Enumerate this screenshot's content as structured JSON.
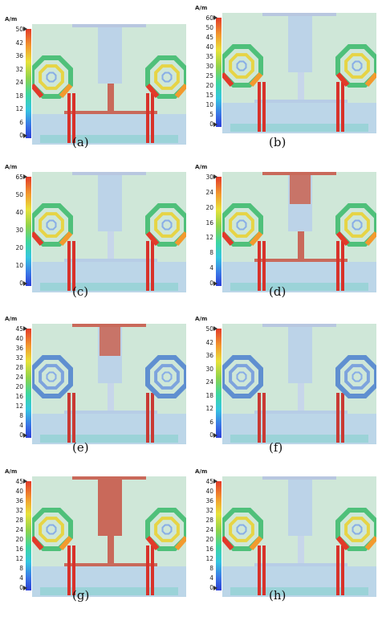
{
  "unit_label": "A/m",
  "panels": [
    {
      "label": "(a)",
      "ticks": [
        "50",
        "42",
        "36",
        "32",
        "24",
        "18",
        "12",
        "6",
        "0"
      ]
    },
    {
      "label": "(b)",
      "ticks": [
        "60",
        "50",
        "45",
        "40",
        "35",
        "30",
        "25",
        "20",
        "15",
        "10",
        "5",
        "0"
      ]
    },
    {
      "label": "(c)",
      "ticks": [
        "65",
        "50",
        "40",
        "30",
        "20",
        "10",
        "0"
      ]
    },
    {
      "label": "(d)",
      "ticks": [
        "30",
        "24",
        "20",
        "16",
        "12",
        "8",
        "4",
        "0"
      ]
    },
    {
      "label": "(e)",
      "ticks": [
        "45",
        "40",
        "36",
        "32",
        "28",
        "24",
        "20",
        "16",
        "12",
        "8",
        "4",
        "0"
      ]
    },
    {
      "label": "(f)",
      "ticks": [
        "50",
        "42",
        "36",
        "30",
        "24",
        "18",
        "12",
        "6",
        "0"
      ]
    },
    {
      "label": "(g)",
      "ticks": [
        "45",
        "40",
        "36",
        "32",
        "28",
        "24",
        "20",
        "16",
        "12",
        "8",
        "4",
        "0"
      ]
    },
    {
      "label": "(h)",
      "ticks": [
        "45",
        "40",
        "36",
        "32",
        "28",
        "24",
        "20",
        "16",
        "12",
        "8",
        "4",
        "0"
      ]
    }
  ],
  "colors": {
    "background": "#cfe7d8",
    "high": "#c9695a",
    "medium": "#f0c040",
    "low": "#3a78e6",
    "copper": "#b8c7e0"
  },
  "patterns": [
    {
      "feed_hot": false,
      "stem_hot": false,
      "ring_hot": true,
      "tbar_hot": true
    },
    {
      "feed_hot": false,
      "stem_hot": false,
      "ring_hot": true,
      "tbar_hot": false
    },
    {
      "feed_hot": false,
      "stem_hot": false,
      "ring_hot": true,
      "tbar_hot": false
    },
    {
      "feed_hot": true,
      "stem_hot": false,
      "ring_hot": true,
      "tbar_hot": true
    },
    {
      "feed_hot": true,
      "stem_hot": false,
      "ring_hot": false,
      "tbar_hot": false
    },
    {
      "feed_hot": false,
      "stem_hot": false,
      "ring_hot": false,
      "tbar_hot": false
    },
    {
      "feed_hot": true,
      "stem_hot": true,
      "ring_hot": true,
      "tbar_hot": true
    },
    {
      "feed_hot": false,
      "stem_hot": false,
      "ring_hot": true,
      "tbar_hot": false
    }
  ]
}
